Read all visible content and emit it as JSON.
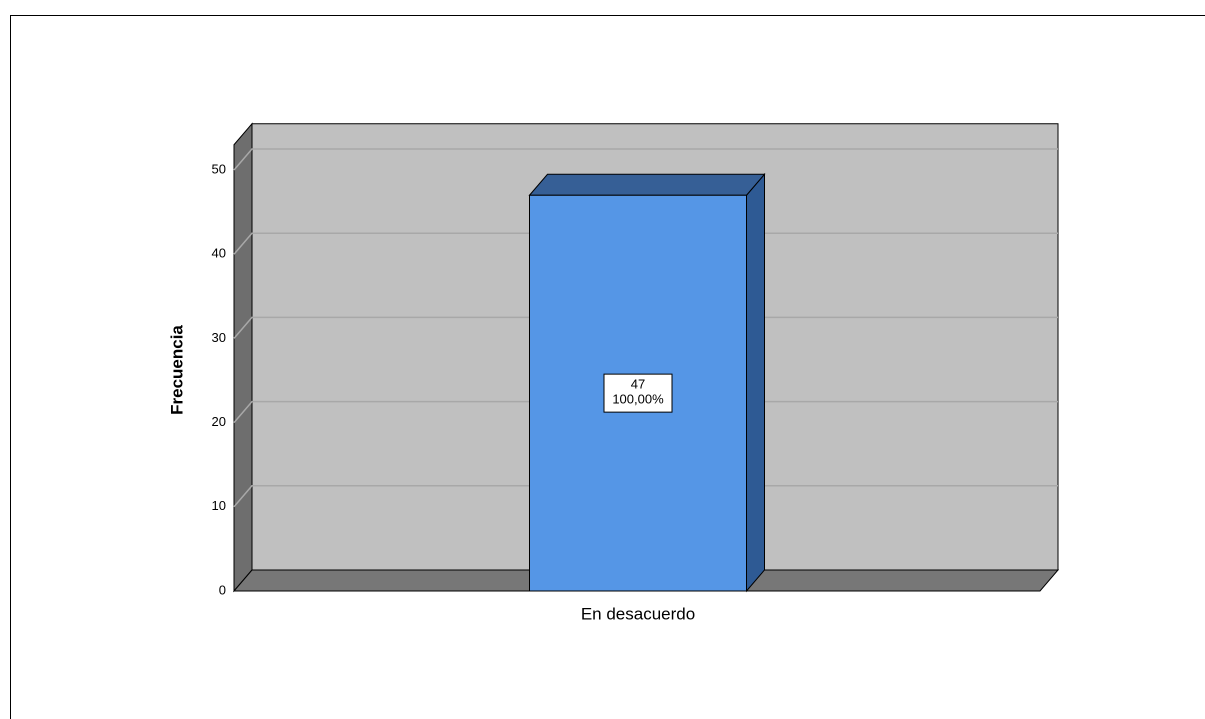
{
  "chart_data": {
    "type": "bar3d",
    "y_label": "Frecuencia",
    "categories": [
      "En desacuerdo"
    ],
    "values": [
      47
    ],
    "percent_labels": [
      "100,00%"
    ],
    "color": "#5596e6",
    "ylim": [
      0,
      53
    ],
    "yticks": [
      0,
      10,
      20,
      30,
      40,
      50
    ],
    "grid": true
  }
}
